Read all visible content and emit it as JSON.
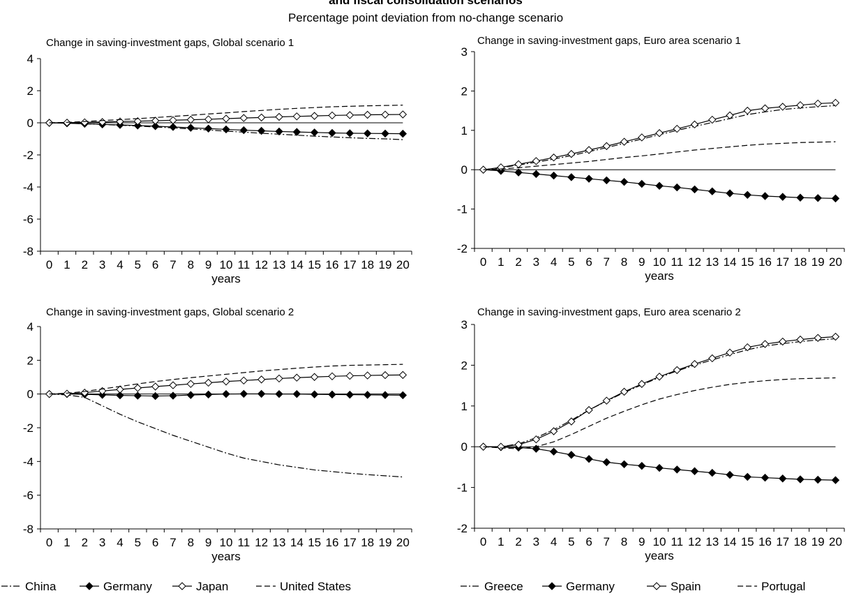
{
  "figure": {
    "title_line1": "and fiscal consolidation scenarios",
    "title_line2": "Percentage point deviation from no-change scenario"
  },
  "chart_data": [
    {
      "type": "line",
      "title": "Change in saving-investment gaps, Global scenario 1",
      "xlabel": "years",
      "ylabel": "",
      "x": [
        0,
        1,
        2,
        3,
        4,
        5,
        6,
        7,
        8,
        9,
        10,
        11,
        12,
        13,
        14,
        15,
        16,
        17,
        18,
        19,
        20
      ],
      "ylim": [
        -8,
        4
      ],
      "yticks": [
        -8,
        -6,
        -4,
        -2,
        0,
        2,
        4
      ],
      "series": [
        {
          "name": "China",
          "style": "dashdot",
          "marker": "none",
          "values": [
            0,
            -0.02,
            -0.06,
            -0.1,
            -0.15,
            -0.2,
            -0.26,
            -0.32,
            -0.38,
            -0.45,
            -0.52,
            -0.58,
            -0.65,
            -0.71,
            -0.77,
            -0.83,
            -0.88,
            -0.93,
            -0.97,
            -1.0,
            -1.05
          ]
        },
        {
          "name": "Germany",
          "style": "solid",
          "marker": "diamond-filled",
          "values": [
            0,
            -0.03,
            -0.06,
            -0.1,
            -0.13,
            -0.17,
            -0.21,
            -0.26,
            -0.31,
            -0.36,
            -0.41,
            -0.46,
            -0.5,
            -0.54,
            -0.57,
            -0.6,
            -0.63,
            -0.65,
            -0.66,
            -0.67,
            -0.68
          ]
        },
        {
          "name": "Japan",
          "style": "solid",
          "marker": "diamond-open",
          "values": [
            0,
            0.01,
            0.03,
            0.05,
            0.08,
            0.1,
            0.13,
            0.16,
            0.19,
            0.22,
            0.26,
            0.3,
            0.33,
            0.37,
            0.4,
            0.43,
            0.46,
            0.48,
            0.5,
            0.51,
            0.52
          ]
        },
        {
          "name": "United States",
          "style": "dashed",
          "marker": "none",
          "values": [
            0,
            0.03,
            0.08,
            0.14,
            0.2,
            0.26,
            0.33,
            0.4,
            0.47,
            0.55,
            0.62,
            0.7,
            0.77,
            0.84,
            0.9,
            0.95,
            1.0,
            1.03,
            1.06,
            1.08,
            1.1
          ]
        }
      ]
    },
    {
      "type": "line",
      "title": "Change in saving-investment gaps, Euro area scenario 1",
      "xlabel": "years",
      "ylabel": "",
      "x": [
        0,
        1,
        2,
        3,
        4,
        5,
        6,
        7,
        8,
        9,
        10,
        11,
        12,
        13,
        14,
        15,
        16,
        17,
        18,
        19,
        20
      ],
      "ylim": [
        -2,
        3
      ],
      "yticks": [
        -2,
        -1,
        0,
        1,
        2,
        3
      ],
      "series": [
        {
          "name": "Greece",
          "style": "dashdot",
          "marker": "none",
          "values": [
            0,
            0.05,
            0.12,
            0.19,
            0.27,
            0.36,
            0.46,
            0.56,
            0.67,
            0.78,
            0.89,
            1.0,
            1.1,
            1.2,
            1.3,
            1.4,
            1.47,
            1.53,
            1.57,
            1.6,
            1.63
          ]
        },
        {
          "name": "Germany",
          "style": "solid",
          "marker": "diamond-filled",
          "values": [
            0,
            -0.03,
            -0.07,
            -0.11,
            -0.15,
            -0.19,
            -0.23,
            -0.27,
            -0.31,
            -0.36,
            -0.41,
            -0.45,
            -0.5,
            -0.55,
            -0.6,
            -0.64,
            -0.67,
            -0.69,
            -0.71,
            -0.72,
            -0.73
          ]
        },
        {
          "name": "Spain",
          "style": "solid",
          "marker": "diamond-open",
          "values": [
            0,
            0.06,
            0.14,
            0.22,
            0.31,
            0.4,
            0.5,
            0.6,
            0.71,
            0.82,
            0.93,
            1.04,
            1.15,
            1.27,
            1.38,
            1.5,
            1.56,
            1.6,
            1.64,
            1.68,
            1.7
          ]
        },
        {
          "name": "Portugal",
          "style": "dashed",
          "marker": "none",
          "values": [
            0,
            0.02,
            0.05,
            0.09,
            0.13,
            0.17,
            0.21,
            0.26,
            0.31,
            0.35,
            0.4,
            0.45,
            0.5,
            0.54,
            0.58,
            0.62,
            0.65,
            0.67,
            0.69,
            0.7,
            0.71
          ]
        }
      ]
    },
    {
      "type": "line",
      "title": "Change in saving-investment gaps, Global scenario 2",
      "xlabel": "years",
      "ylabel": "",
      "x": [
        0,
        1,
        2,
        3,
        4,
        5,
        6,
        7,
        8,
        9,
        10,
        11,
        12,
        13,
        14,
        15,
        16,
        17,
        18,
        19,
        20
      ],
      "ylim": [
        -8,
        4
      ],
      "yticks": [
        -8,
        -6,
        -4,
        -2,
        0,
        2,
        4
      ],
      "series": [
        {
          "name": "China",
          "style": "dashdot",
          "marker": "none",
          "values": [
            0,
            -0.05,
            -0.2,
            -0.7,
            -1.2,
            -1.65,
            -2.05,
            -2.45,
            -2.8,
            -3.15,
            -3.5,
            -3.8,
            -4.0,
            -4.2,
            -4.35,
            -4.5,
            -4.6,
            -4.7,
            -4.78,
            -4.85,
            -4.92
          ]
        },
        {
          "name": "Germany",
          "style": "solid",
          "marker": "diamond-filled",
          "values": [
            0,
            0,
            -0.02,
            -0.05,
            -0.08,
            -0.1,
            -0.12,
            -0.1,
            -0.06,
            -0.03,
            0,
            0.01,
            0.01,
            0,
            0,
            -0.02,
            -0.03,
            -0.04,
            -0.05,
            -0.06,
            -0.07
          ]
        },
        {
          "name": "Japan",
          "style": "solid",
          "marker": "diamond-open",
          "values": [
            0,
            0.02,
            0.08,
            0.18,
            0.27,
            0.36,
            0.44,
            0.52,
            0.6,
            0.67,
            0.74,
            0.8,
            0.86,
            0.92,
            0.97,
            1.01,
            1.05,
            1.08,
            1.1,
            1.12,
            1.13
          ]
        },
        {
          "name": "United States",
          "style": "dashed",
          "marker": "none",
          "values": [
            0,
            0.05,
            0.15,
            0.3,
            0.45,
            0.6,
            0.74,
            0.86,
            0.97,
            1.07,
            1.17,
            1.27,
            1.37,
            1.45,
            1.53,
            1.6,
            1.66,
            1.7,
            1.72,
            1.74,
            1.76
          ]
        }
      ]
    },
    {
      "type": "line",
      "title": "Change in saving-investment gaps, Euro area scenario 2",
      "xlabel": "years",
      "ylabel": "",
      "x": [
        0,
        1,
        2,
        3,
        4,
        5,
        6,
        7,
        8,
        9,
        10,
        11,
        12,
        13,
        14,
        15,
        16,
        17,
        18,
        19,
        20
      ],
      "ylim": [
        -2,
        3
      ],
      "yticks": [
        -2,
        -1,
        0,
        1,
        2,
        3
      ],
      "series": [
        {
          "name": "Greece",
          "style": "dashdot",
          "marker": "none",
          "values": [
            0,
            0.0,
            0.07,
            0.22,
            0.42,
            0.65,
            0.9,
            1.12,
            1.33,
            1.52,
            1.7,
            1.86,
            2.0,
            2.13,
            2.26,
            2.38,
            2.47,
            2.53,
            2.58,
            2.62,
            2.65
          ]
        },
        {
          "name": "Germany",
          "style": "solid",
          "marker": "diamond-filled",
          "values": [
            0,
            -0.01,
            -0.02,
            -0.05,
            -0.12,
            -0.2,
            -0.3,
            -0.38,
            -0.43,
            -0.47,
            -0.52,
            -0.56,
            -0.6,
            -0.64,
            -0.69,
            -0.74,
            -0.76,
            -0.78,
            -0.8,
            -0.81,
            -0.82
          ]
        },
        {
          "name": "Spain",
          "style": "solid",
          "marker": "diamond-open",
          "values": [
            0,
            0.0,
            0.05,
            0.18,
            0.38,
            0.62,
            0.9,
            1.13,
            1.35,
            1.54,
            1.72,
            1.88,
            2.03,
            2.17,
            2.31,
            2.44,
            2.52,
            2.58,
            2.63,
            2.67,
            2.7
          ]
        },
        {
          "name": "Portugal",
          "style": "dashed",
          "marker": "none",
          "values": [
            0,
            -0.03,
            -0.05,
            0.0,
            0.12,
            0.3,
            0.5,
            0.7,
            0.87,
            1.03,
            1.17,
            1.28,
            1.38,
            1.46,
            1.53,
            1.58,
            1.62,
            1.65,
            1.67,
            1.68,
            1.69
          ]
        }
      ]
    }
  ]
}
